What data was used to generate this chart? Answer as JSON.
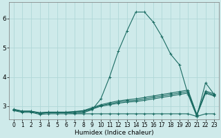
{
  "xlabel": "Humidex (Indice chaleur)",
  "xlim": [
    -0.5,
    23.5
  ],
  "ylim": [
    2.55,
    6.55
  ],
  "yticks": [
    3,
    4,
    5,
    6
  ],
  "xticks": [
    0,
    1,
    2,
    3,
    4,
    5,
    6,
    7,
    8,
    9,
    10,
    11,
    12,
    13,
    14,
    15,
    16,
    17,
    18,
    19,
    20,
    21,
    22,
    23
  ],
  "bg_color": "#ceeaea",
  "line_color": "#1a6b62",
  "grid_color": "#b0d8d8",
  "lines": [
    {
      "x": [
        0,
        1,
        2,
        3,
        4,
        5,
        6,
        7,
        8,
        9,
        10,
        11,
        12,
        13,
        14,
        15,
        16,
        17,
        18,
        19,
        20,
        21,
        22,
        23
      ],
      "y": [
        2.88,
        2.83,
        2.83,
        2.75,
        2.78,
        2.78,
        2.78,
        2.75,
        2.78,
        2.88,
        3.25,
        4.0,
        4.88,
        5.58,
        6.22,
        6.22,
        5.88,
        5.38,
        4.78,
        4.42,
        3.4,
        2.65,
        3.8,
        3.4
      ]
    },
    {
      "x": [
        0,
        1,
        2,
        3,
        4,
        5,
        6,
        7,
        8,
        9,
        10,
        11,
        12,
        13,
        14,
        15,
        16,
        17,
        18,
        19,
        20,
        21,
        22,
        23
      ],
      "y": [
        2.9,
        2.83,
        2.83,
        2.78,
        2.8,
        2.8,
        2.8,
        2.82,
        2.85,
        2.95,
        3.05,
        3.12,
        3.18,
        3.22,
        3.25,
        3.3,
        3.35,
        3.4,
        3.45,
        3.5,
        3.55,
        2.72,
        3.52,
        3.42
      ]
    },
    {
      "x": [
        0,
        1,
        2,
        3,
        4,
        5,
        6,
        7,
        8,
        9,
        10,
        11,
        12,
        13,
        14,
        15,
        16,
        17,
        18,
        19,
        20,
        21,
        22,
        23
      ],
      "y": [
        2.88,
        2.82,
        2.82,
        2.77,
        2.79,
        2.79,
        2.79,
        2.8,
        2.83,
        2.92,
        3.02,
        3.08,
        3.14,
        3.18,
        3.2,
        3.25,
        3.3,
        3.35,
        3.4,
        3.45,
        3.5,
        2.7,
        3.48,
        3.38
      ]
    },
    {
      "x": [
        0,
        1,
        2,
        3,
        4,
        5,
        6,
        7,
        8,
        9,
        10,
        11,
        12,
        13,
        14,
        15,
        16,
        17,
        18,
        19,
        20,
        21,
        22,
        23
      ],
      "y": [
        2.88,
        2.82,
        2.82,
        2.76,
        2.78,
        2.78,
        2.78,
        2.79,
        2.82,
        2.9,
        3.0,
        3.05,
        3.1,
        3.14,
        3.16,
        3.2,
        3.25,
        3.3,
        3.35,
        3.4,
        3.45,
        2.68,
        3.44,
        3.35
      ]
    },
    {
      "x": [
        0,
        1,
        2,
        3,
        4,
        5,
        6,
        7,
        8,
        9,
        10,
        11,
        12,
        13,
        14,
        15,
        16,
        17,
        18,
        19,
        20,
        21,
        22,
        23
      ],
      "y": [
        2.85,
        2.79,
        2.79,
        2.72,
        2.74,
        2.74,
        2.74,
        2.74,
        2.74,
        2.74,
        2.74,
        2.74,
        2.74,
        2.74,
        2.74,
        2.74,
        2.74,
        2.74,
        2.74,
        2.74,
        2.74,
        2.65,
        2.74,
        2.74
      ]
    }
  ]
}
